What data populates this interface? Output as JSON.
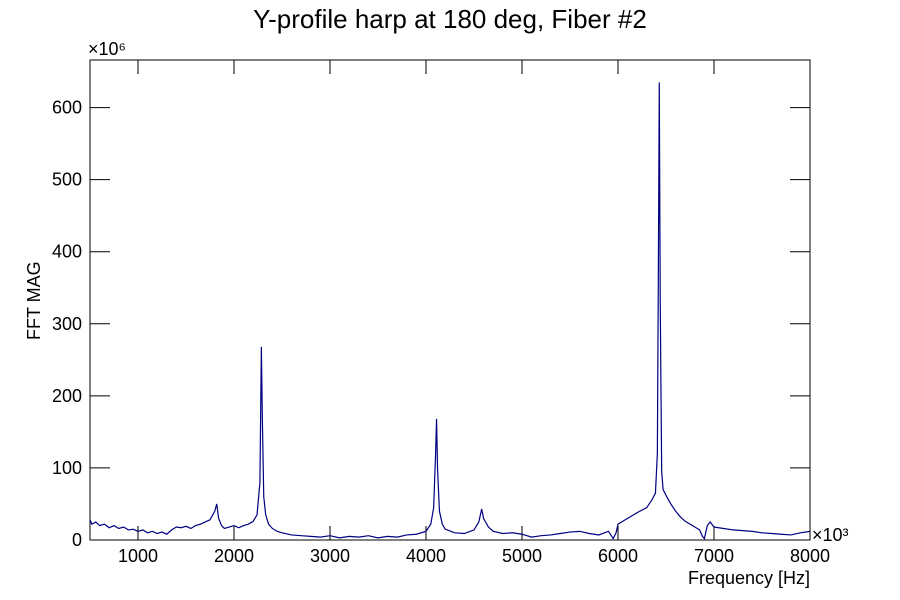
{
  "chart_data": {
    "type": "line",
    "title": "Y-profile harp at 180 deg, Fiber #2",
    "x_label": "Frequency [Hz]",
    "y_label": "FFT MAG",
    "x_multiplier": "×10³",
    "y_multiplier": "×10⁶",
    "color": "#000080",
    "x": [
      500,
      520,
      560,
      600,
      650,
      700,
      750,
      800,
      850,
      900,
      950,
      1000,
      1050,
      1100,
      1150,
      1200,
      1250,
      1300,
      1350,
      1400,
      1450,
      1500,
      1550,
      1600,
      1650,
      1700,
      1750,
      1800,
      1820,
      1840,
      1870,
      1900,
      1950,
      2000,
      2050,
      2100,
      2150,
      2200,
      2240,
      2270,
      2285,
      2295,
      2310,
      2330,
      2360,
      2400,
      2450,
      2500,
      2600,
      2700,
      2800,
      2900,
      3000,
      3100,
      3200,
      3300,
      3400,
      3500,
      3600,
      3700,
      3800,
      3900,
      4000,
      4050,
      4080,
      4100,
      4110,
      4120,
      4140,
      4170,
      4200,
      4300,
      4400,
      4500,
      4550,
      4580,
      4600,
      4650,
      4700,
      4800,
      4900,
      5000,
      5100,
      5200,
      5300,
      5400,
      5500,
      5600,
      5700,
      5800,
      5900,
      5950,
      5980,
      6000,
      6100,
      6200,
      6300,
      6350,
      6390,
      6410,
      6420,
      6430,
      6440,
      6455,
      6470,
      6500,
      6550,
      6600,
      6650,
      6700,
      6750,
      6800,
      6850,
      6880,
      6900,
      6930,
      6960,
      7000,
      7100,
      7200,
      7300,
      7400,
      7500,
      7600,
      7700,
      7800,
      7900,
      8000
    ],
    "values": [
      28,
      22,
      25,
      20,
      22,
      17,
      20,
      16,
      18,
      14,
      15,
      12,
      14,
      10,
      12,
      9,
      11,
      8,
      14,
      18,
      17,
      19,
      16,
      20,
      22,
      25,
      28,
      40,
      50,
      30,
      20,
      16,
      18,
      20,
      17,
      20,
      22,
      26,
      35,
      80,
      268,
      170,
      60,
      35,
      22,
      16,
      12,
      10,
      7,
      6,
      5,
      4,
      6,
      3,
      5,
      4,
      6,
      3,
      5,
      4,
      7,
      8,
      12,
      22,
      45,
      120,
      168,
      100,
      40,
      22,
      15,
      10,
      9,
      14,
      25,
      43,
      30,
      18,
      12,
      9,
      10,
      8,
      4,
      6,
      7,
      9,
      11,
      12,
      9,
      7,
      12,
      2,
      10,
      22,
      30,
      38,
      45,
      55,
      65,
      120,
      360,
      635,
      330,
      95,
      70,
      62,
      50,
      40,
      32,
      26,
      22,
      18,
      14,
      5,
      2,
      20,
      25,
      18,
      16,
      14,
      13,
      12,
      10,
      9,
      8,
      7,
      10,
      12
    ],
    "xlim": [
      500,
      8000
    ],
    "ylim": [
      0,
      666
    ],
    "xticks": [
      1000,
      2000,
      3000,
      4000,
      5000,
      6000,
      7000,
      8000
    ],
    "yticks": [
      0,
      100,
      200,
      300,
      400,
      500,
      600
    ]
  }
}
